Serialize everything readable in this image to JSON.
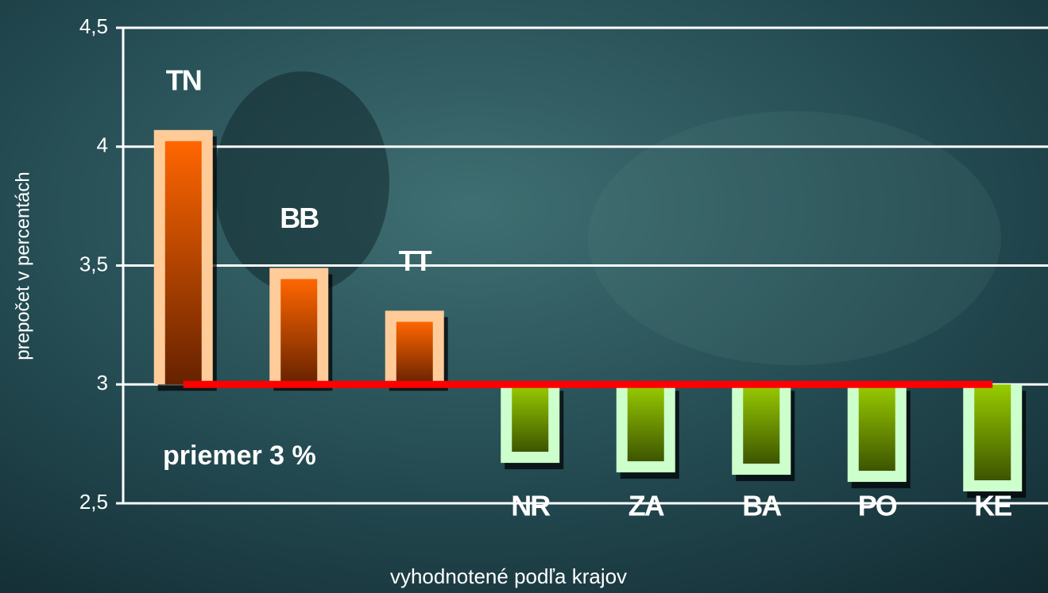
{
  "chart_data": {
    "type": "bar",
    "x_label": "vyhodnotené podľa krajov",
    "y_label": "prepočet v percentách",
    "annotation": "priemer 3 %",
    "categories": [
      "TN",
      "BB",
      "TT",
      "NR",
      "ZA",
      "BA",
      "PO",
      "KE"
    ],
    "values": [
      4.07,
      3.49,
      3.31,
      2.67,
      2.63,
      2.62,
      2.59,
      2.55
    ],
    "reference_line": 3,
    "reference_color": "#ff0000",
    "colors": {
      "above": {
        "frame": "#ffcc99",
        "top": "#ff6600",
        "bottom": "#662200"
      },
      "below": {
        "frame": "#ccffcc",
        "top": "#99cc00",
        "bottom": "#3d5500"
      }
    },
    "ylim": [
      2.5,
      4.5
    ],
    "yticks": [
      {
        "value": 2.5,
        "label": "2,5"
      },
      3,
      {
        "value": 3.5,
        "label": "3,5"
      },
      4,
      {
        "value": 4.5,
        "label": "4,5"
      }
    ],
    "grid": true
  }
}
